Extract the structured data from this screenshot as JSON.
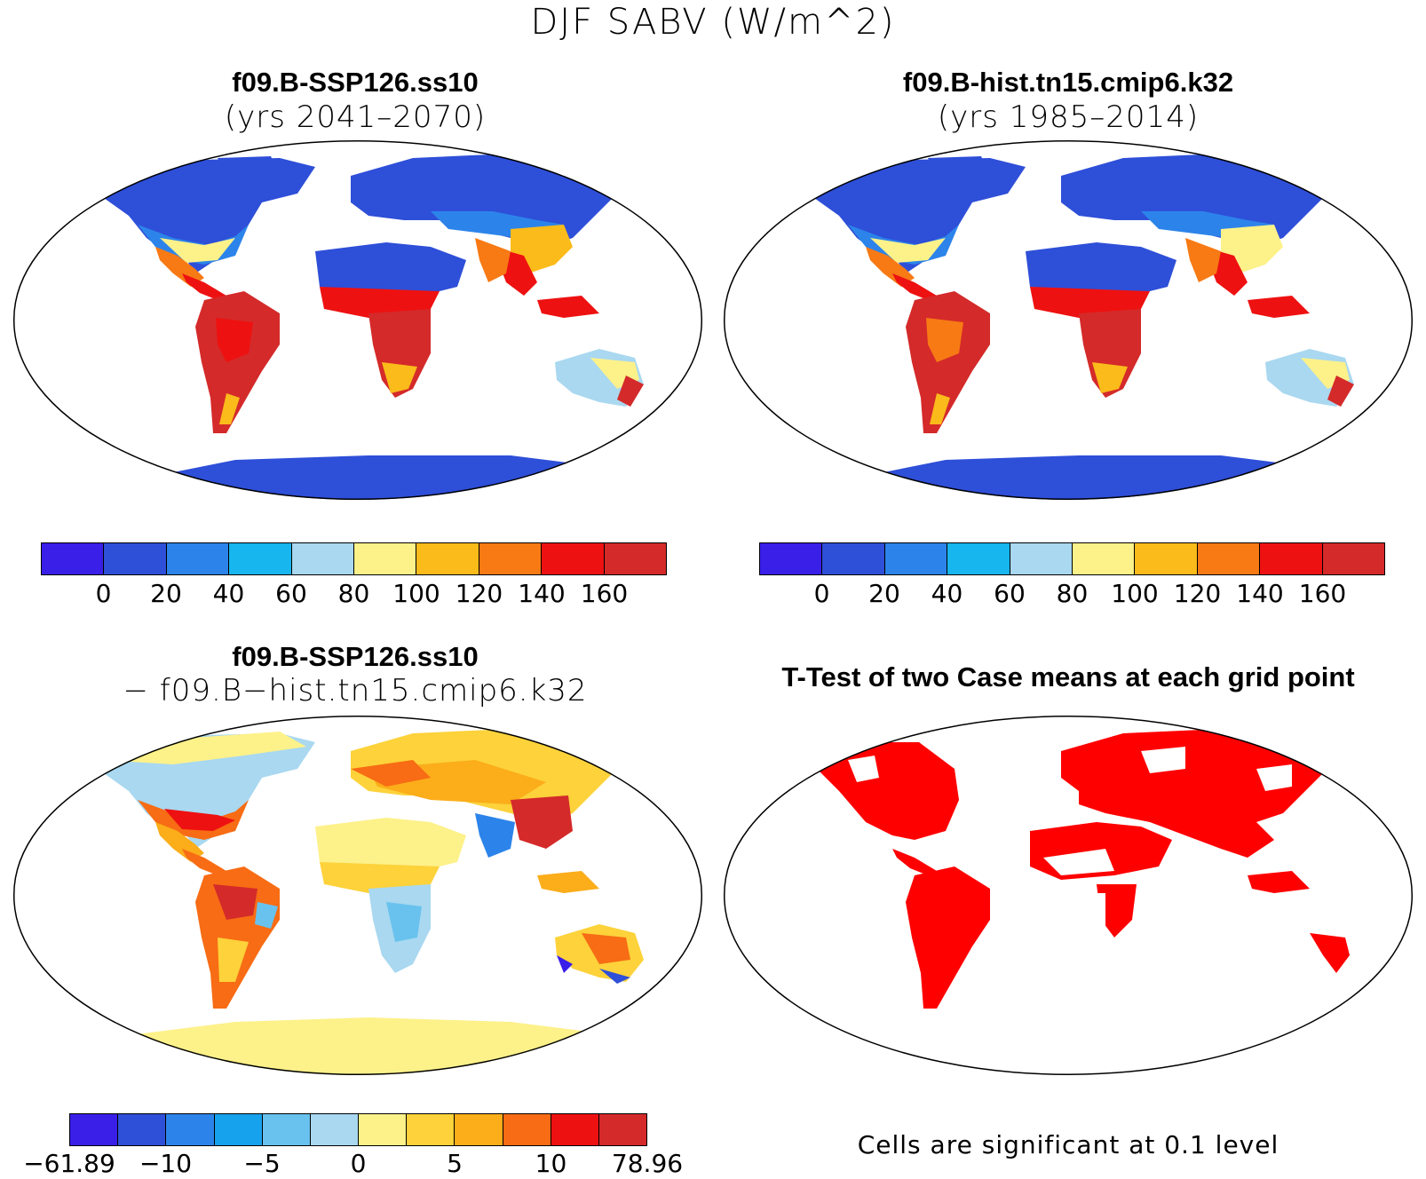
{
  "figure_title": "DJF SABV (W/m^2)",
  "panels": {
    "top_left": {
      "title": "f09.B-SSP126.ss10",
      "subtitle": "(yrs 2041–2070)",
      "colorbar": {
        "colors": [
          "#3a1fe8",
          "#2e4fd8",
          "#2c84ea",
          "#17b6ee",
          "#a9d8f0",
          "#fdf18a",
          "#fbbb1a",
          "#f77a14",
          "#ee1111",
          "#d42a2a"
        ],
        "ticks": [
          "0",
          "20",
          "40",
          "60",
          "80",
          "100",
          "120",
          "140",
          "160"
        ]
      }
    },
    "top_right": {
      "title": "f09.B-hist.tn15.cmip6.k32",
      "subtitle": "(yrs 1985–2014)",
      "colorbar": {
        "colors": [
          "#3a1fe8",
          "#2e4fd8",
          "#2c84ea",
          "#17b6ee",
          "#a9d8f0",
          "#fdf18a",
          "#fbbb1a",
          "#f77a14",
          "#ee1111",
          "#d42a2a"
        ],
        "ticks": [
          "0",
          "20",
          "40",
          "60",
          "80",
          "100",
          "120",
          "140",
          "160"
        ]
      }
    },
    "bottom_left": {
      "title": "f09.B-SSP126.ss10",
      "subtitle": "− f09.B−hist.tn15.cmip6.k32",
      "colorbar": {
        "colors": [
          "#3a1fe8",
          "#2e4fd8",
          "#2c84ea",
          "#17a2ee",
          "#69c2ee",
          "#a9d8f0",
          "#fdf18a",
          "#fdd23a",
          "#fbad1a",
          "#f76c14",
          "#ee1111",
          "#d42a2a"
        ],
        "ticks": [
          "−61.89",
          "−10",
          "−5",
          "0",
          "5",
          "10",
          "78.96"
        ]
      }
    },
    "bottom_right": {
      "title": "T-Test of two Case means at each grid point",
      "note": "Cells are significant at 0.1 level",
      "significant_color": "#ff0000"
    }
  }
}
